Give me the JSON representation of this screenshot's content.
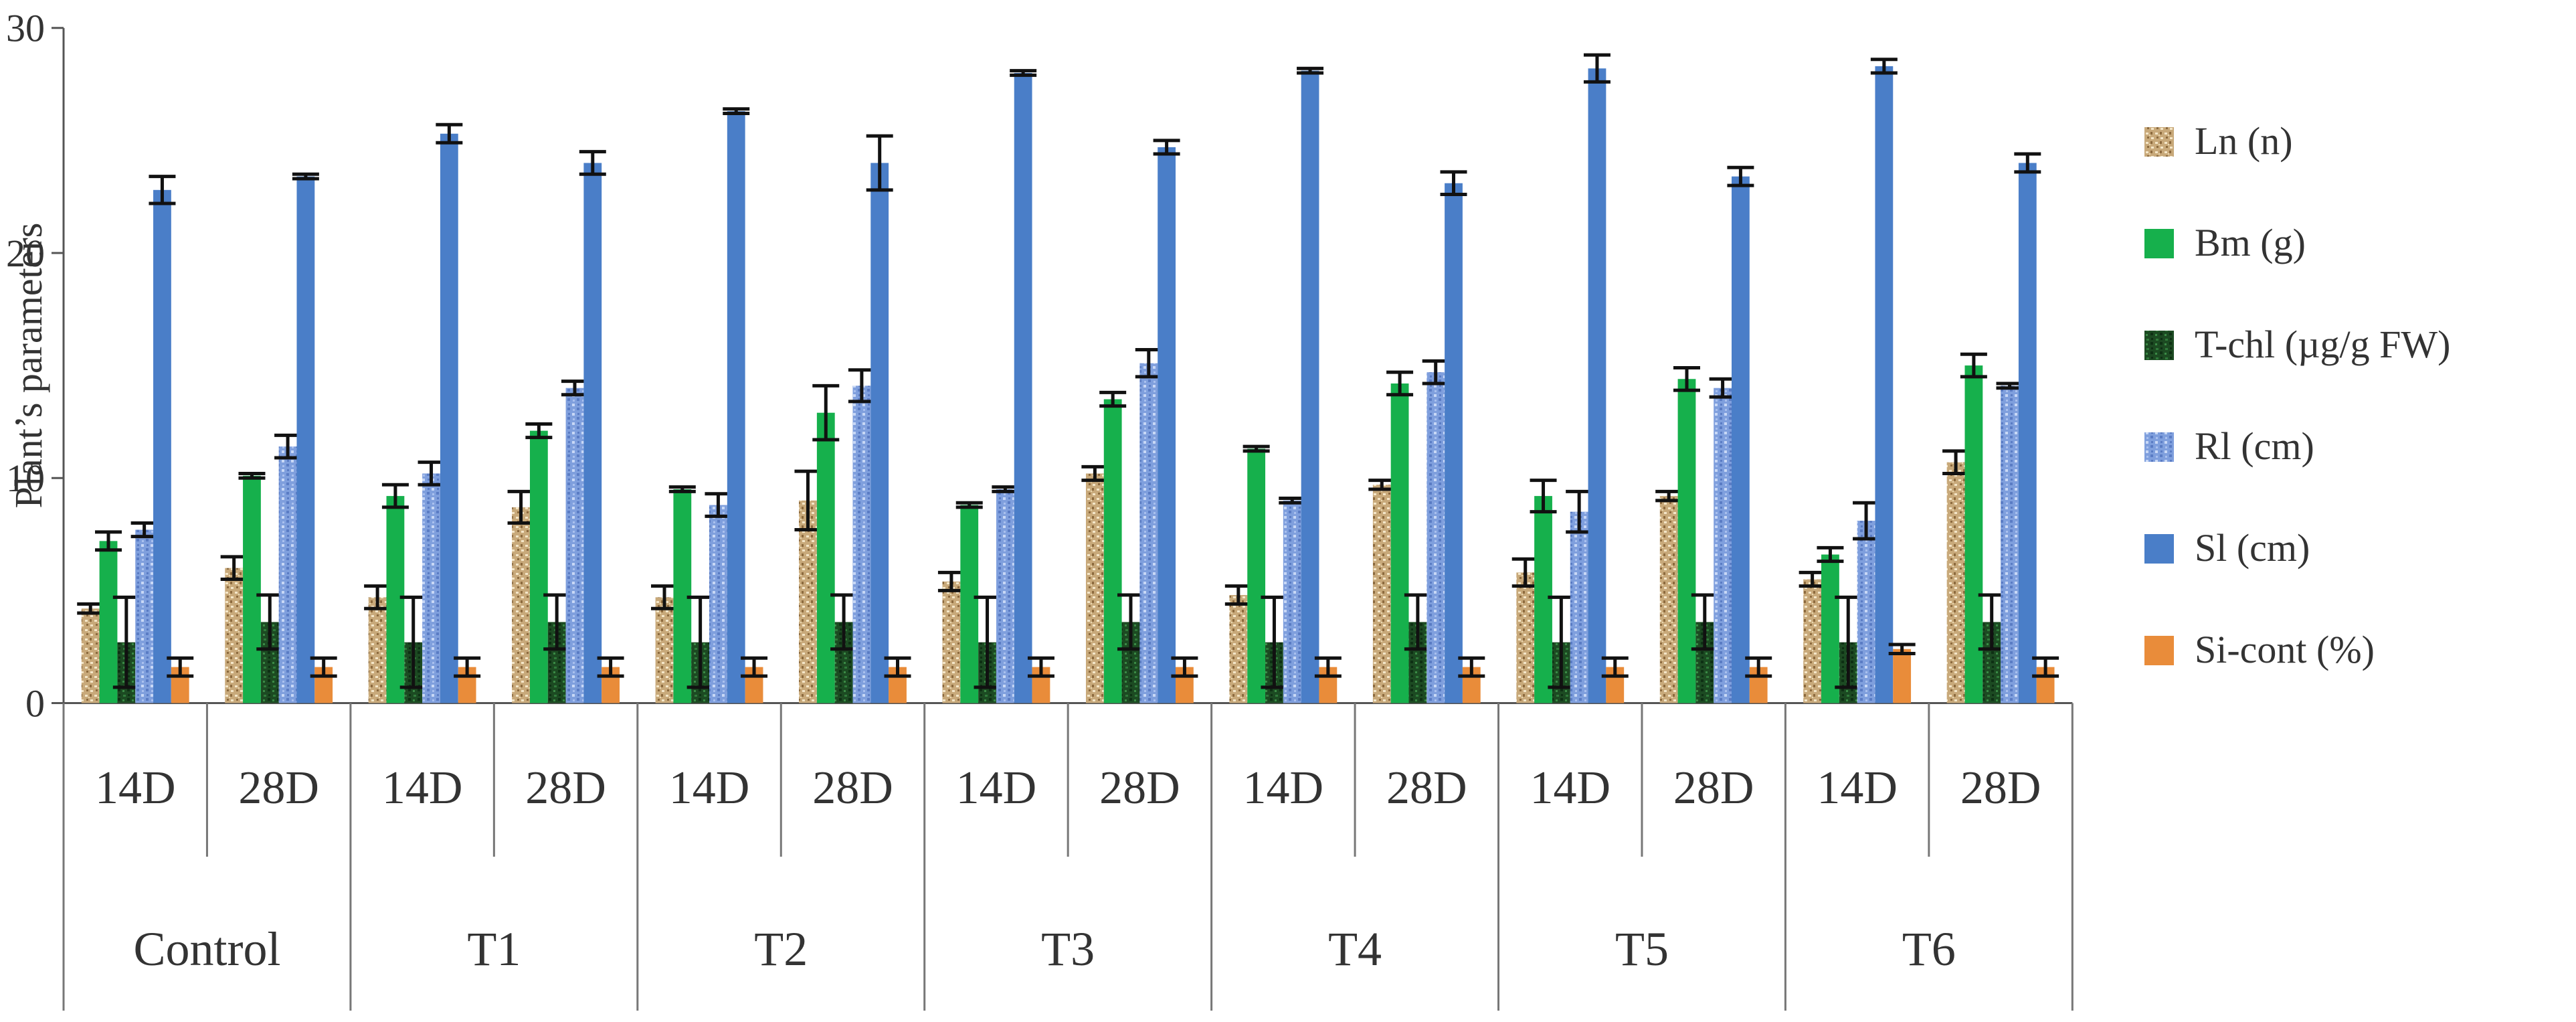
{
  "chart_data": {
    "type": "bar",
    "title": "",
    "xlabel": "",
    "ylabel": "Plant’s parameters",
    "ylim": [
      0,
      30
    ],
    "yticks": [
      0,
      10,
      20,
      30
    ],
    "grid": false,
    "legend_position": "right",
    "groups": [
      "Control",
      "T1",
      "T2",
      "T3",
      "T4",
      "T5",
      "T6"
    ],
    "periods": [
      "14D",
      "28D"
    ],
    "categories": [
      "Control 14D",
      "Control 28D",
      "T1 14D",
      "T1 28D",
      "T2 14D",
      "T2 28D",
      "T3 14D",
      "T3 28D",
      "T4 14D",
      "T4 28D",
      "T5 14D",
      "T5 28D",
      "T6 14D",
      "T6 28D"
    ],
    "series": [
      {
        "name": "Ln (n)",
        "color": "#c8a97a",
        "pattern": "speckled",
        "values": [
          4.2,
          6.0,
          4.7,
          8.7,
          4.7,
          9.0,
          5.4,
          10.2,
          4.8,
          9.7,
          5.8,
          9.2,
          5.5,
          10.7
        ],
        "errors": [
          0.2,
          0.5,
          0.5,
          0.7,
          0.5,
          1.3,
          0.4,
          0.3,
          0.4,
          0.2,
          0.6,
          0.2,
          0.3,
          0.5
        ]
      },
      {
        "name": "Bm (g)",
        "color": "#16b04c",
        "pattern": "solid",
        "values": [
          7.2,
          10.1,
          9.2,
          12.1,
          9.5,
          12.9,
          8.8,
          13.5,
          11.3,
          14.2,
          9.2,
          14.4,
          6.6,
          15.0
        ],
        "errors": [
          0.4,
          0.1,
          0.5,
          0.3,
          0.1,
          1.2,
          0.1,
          0.3,
          0.1,
          0.5,
          0.7,
          0.5,
          0.3,
          0.5
        ]
      },
      {
        "name": "T-chl (µg/g FW)",
        "color": "#1c4a22",
        "pattern": "mottled",
        "values": [
          2.7,
          3.6,
          2.7,
          3.6,
          2.7,
          3.6,
          2.7,
          3.6,
          2.7,
          3.6,
          2.7,
          3.6,
          2.7,
          3.6
        ],
        "errors": [
          2.0,
          1.2,
          2.0,
          1.2,
          2.0,
          1.2,
          2.0,
          1.2,
          2.0,
          1.2,
          2.0,
          1.2,
          2.0,
          1.2
        ]
      },
      {
        "name": "Rl (cm)",
        "color": "#7f9fdd",
        "pattern": "mottled",
        "values": [
          7.7,
          11.4,
          10.2,
          14.0,
          8.8,
          14.1,
          9.5,
          15.1,
          9.0,
          14.7,
          8.5,
          14.0,
          8.1,
          14.1
        ],
        "errors": [
          0.3,
          0.5,
          0.5,
          0.3,
          0.5,
          0.7,
          0.1,
          0.6,
          0.1,
          0.5,
          0.9,
          0.4,
          0.8,
          0.1
        ]
      },
      {
        "name": "Sl (cm)",
        "color": "#4a7ec8",
        "pattern": "solid",
        "values": [
          22.8,
          23.4,
          25.3,
          24.0,
          26.3,
          24.0,
          28.0,
          24.7,
          28.1,
          23.1,
          28.2,
          23.4,
          28.3,
          24.0
        ],
        "errors": [
          0.6,
          0.1,
          0.4,
          0.5,
          0.1,
          1.2,
          0.1,
          0.3,
          0.1,
          0.5,
          0.6,
          0.4,
          0.3,
          0.4
        ]
      },
      {
        "name": "Si-cont (%)",
        "color": "#e98c3a",
        "pattern": "solid",
        "values": [
          1.6,
          1.6,
          1.6,
          1.6,
          1.6,
          1.6,
          1.6,
          1.6,
          1.6,
          1.6,
          1.6,
          1.6,
          2.4,
          1.6
        ],
        "errors": [
          0.4,
          0.4,
          0.4,
          0.4,
          0.4,
          0.4,
          0.4,
          0.4,
          0.4,
          0.4,
          0.4,
          0.4,
          0.2,
          0.4
        ]
      }
    ]
  }
}
